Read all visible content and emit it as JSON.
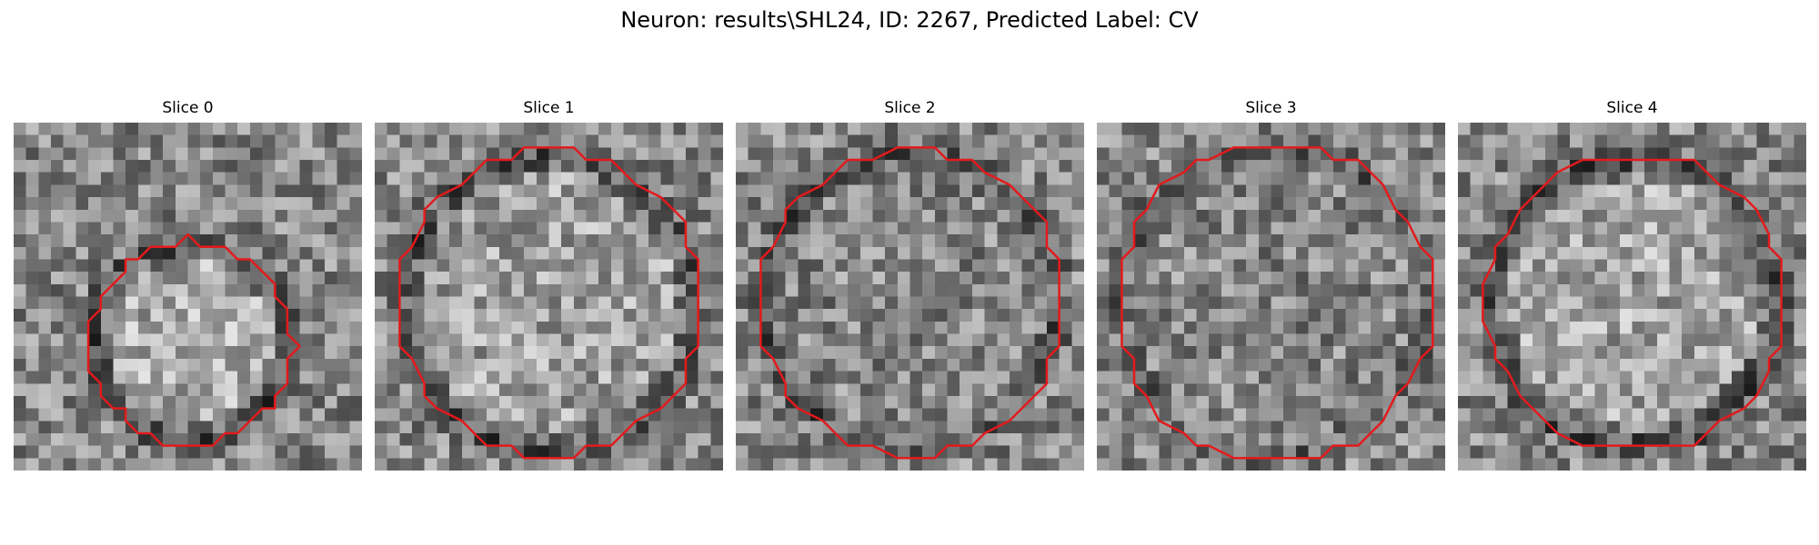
{
  "figure": {
    "title": "Neuron: results\\SHL24, ID: 2267, Predicted Label: CV"
  },
  "panels": [
    {
      "title": "Slice 0"
    },
    {
      "title": "Slice 1"
    },
    {
      "title": "Slice 2"
    },
    {
      "title": "Slice 3"
    },
    {
      "title": "Slice 4"
    }
  ],
  "colors": {
    "contour": "#e31a1c",
    "background": "#ffffff"
  }
}
